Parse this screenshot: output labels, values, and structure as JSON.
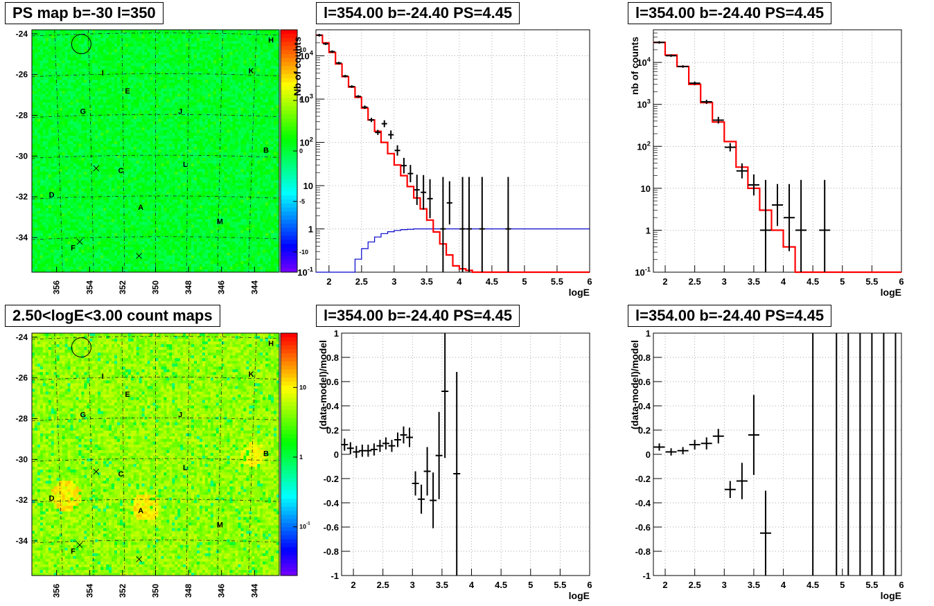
{
  "titles": {
    "map_top": "PS map b=-30 l=350",
    "map_bottom": "2.50<logE<3.00 count maps",
    "p1": "l=354.00 b=-24.40 PS=4.45",
    "p2": "l=354.00 b=-24.40 PS=4.45",
    "p3": "l=354.00 b=-24.40 PS=4.45",
    "p4": "l=354.00 b=-24.40 PS=4.45"
  },
  "colors": {
    "model_line": "#ff0000",
    "data_points": "#000000",
    "blue_curve": "#0000cc",
    "grid": "#888888"
  },
  "chart_data": [
    {
      "id": "ps_map",
      "type": "heatmap",
      "title": "PS map b=-30 l=350",
      "xticks": [
        "356",
        "354",
        "352",
        "350",
        "348",
        "346",
        "344"
      ],
      "yticks": [
        "-24",
        "-26",
        "-28",
        "-30",
        "-32",
        "-34"
      ],
      "xlim": [
        357.5,
        342.5
      ],
      "ylim": [
        -35.7,
        -23.8
      ],
      "zticks": [
        "10",
        "5",
        "0",
        "-5",
        "-10"
      ],
      "zlim": [
        -12,
        12
      ],
      "labels": [
        {
          "t": "H",
          "l": 343.0,
          "b": -24.3
        },
        {
          "t": "I",
          "l": 353.2,
          "b": -25.9
        },
        {
          "t": "K",
          "l": 344.2,
          "b": -25.8
        },
        {
          "t": "E",
          "l": 351.7,
          "b": -26.8
        },
        {
          "t": "G",
          "l": 354.4,
          "b": -27.8
        },
        {
          "t": "J",
          "l": 348.5,
          "b": -27.8
        },
        {
          "t": "B",
          "l": 343.3,
          "b": -29.7
        },
        {
          "t": "C",
          "l": 352.1,
          "b": -30.7
        },
        {
          "t": "L",
          "l": 348.2,
          "b": -30.4
        },
        {
          "t": "D",
          "l": 356.3,
          "b": -31.9
        },
        {
          "t": "A",
          "l": 350.9,
          "b": -32.5
        },
        {
          "t": "M",
          "l": 346.1,
          "b": -33.2
        },
        {
          "t": "F",
          "l": 355.0,
          "b": -34.5
        }
      ],
      "crosses": [
        {
          "l": 353.6,
          "b": -30.6
        },
        {
          "l": 354.6,
          "b": -34.2
        },
        {
          "l": 351.0,
          "b": -34.9
        }
      ],
      "circle": {
        "l": 354.5,
        "b": -24.5
      }
    },
    {
      "id": "count_map",
      "type": "heatmap",
      "title": "2.50<logE<3.00 count maps",
      "xticks": [
        "356",
        "354",
        "352",
        "350",
        "348",
        "346",
        "344"
      ],
      "yticks": [
        "-24",
        "-26",
        "-28",
        "-30",
        "-32",
        "-34"
      ],
      "xlim": [
        357.5,
        342.5
      ],
      "ylim": [
        -35.7,
        -23.8
      ],
      "zticks": [
        "10",
        "1",
        "10-1"
      ],
      "zlog": true,
      "zlim": [
        0.02,
        60
      ]
    },
    {
      "id": "spectrum_left",
      "type": "line",
      "title": "l=354.00 b=-24.40 PS=4.45",
      "xlabel": "logE",
      "ylabel": "Nb of counts",
      "xlim": [
        1.8,
        6.0
      ],
      "ylim": [
        0.1,
        40000
      ],
      "ylog": true,
      "xticks": [
        "2",
        "2.5",
        "3",
        "3.5",
        "4",
        "4.5",
        "5",
        "5.5",
        "6"
      ],
      "yticks": [
        "10-1",
        "1",
        "10",
        "102",
        "103",
        "104"
      ],
      "model_bins_width": 0.1,
      "model_x0": 1.8,
      "model_values": [
        30000,
        20000,
        12000,
        6500,
        3300,
        1900,
        1100,
        620,
        330,
        180,
        100,
        55,
        30,
        17,
        9.5,
        5.2,
        2.9,
        1.6,
        0.85,
        0.45,
        0.25,
        0.14,
        0.12,
        0.11,
        0.1,
        0.1,
        0.1,
        0.1,
        0.1,
        0.1,
        0.1,
        0.1,
        0.1,
        0.1,
        0.1,
        0.1,
        0.1,
        0.1,
        0.1,
        0.1,
        0.1,
        0.1
      ],
      "points": [
        {
          "x": 1.85,
          "y": 30000,
          "e": 0.03
        },
        {
          "x": 1.95,
          "y": 19000,
          "e": 0.03
        },
        {
          "x": 2.05,
          "y": 12500,
          "e": 0.03
        },
        {
          "x": 2.15,
          "y": 6800,
          "e": 0.03
        },
        {
          "x": 2.25,
          "y": 3400,
          "e": 0.03
        },
        {
          "x": 2.35,
          "y": 1950,
          "e": 0.03
        },
        {
          "x": 2.45,
          "y": 1150,
          "e": 0.03
        },
        {
          "x": 2.55,
          "y": 650,
          "e": 0.04
        },
        {
          "x": 2.65,
          "y": 330,
          "e": 0.05
        },
        {
          "x": 2.75,
          "y": 170,
          "e": 0.06
        },
        {
          "x": 2.85,
          "y": 270,
          "e": 0.08
        },
        {
          "x": 2.95,
          "y": 150,
          "e": 0.1
        },
        {
          "x": 3.05,
          "y": 65,
          "e": 0.12
        },
        {
          "x": 3.15,
          "y": 29,
          "e": 0.18
        },
        {
          "x": 3.25,
          "y": 19,
          "e": 0.2
        },
        {
          "x": 3.35,
          "y": 8,
          "e": 0.35
        },
        {
          "x": 3.45,
          "y": 7,
          "e": 0.4
        },
        {
          "x": 3.55,
          "y": 5,
          "e": 0.45
        },
        {
          "x": 3.75,
          "y": 1,
          "e": 1.2
        },
        {
          "x": 3.85,
          "y": 4,
          "e": 0.5
        },
        {
          "x": 4.05,
          "y": 1,
          "e": 1.2
        },
        {
          "x": 4.15,
          "y": 1,
          "e": 1.2
        },
        {
          "x": 4.35,
          "y": 1,
          "e": 1.2
        },
        {
          "x": 4.75,
          "y": 1,
          "e": 1.2
        }
      ],
      "blue_x": [
        1.8,
        2.3,
        2.4,
        2.5,
        2.6,
        2.7,
        2.8,
        2.9,
        3.0,
        3.1,
        3.2,
        3.3,
        6.0
      ],
      "blue_y": [
        0.1,
        0.1,
        0.2,
        0.35,
        0.5,
        0.65,
        0.78,
        0.86,
        0.92,
        0.96,
        0.98,
        1.0,
        1.0
      ]
    },
    {
      "id": "spectrum_right",
      "type": "line",
      "title": "l=354.00 b=-24.40 PS=4.45",
      "xlabel": "logE",
      "ylabel": "nb of counts",
      "xlim": [
        1.8,
        6.0
      ],
      "ylim": [
        0.1,
        60000
      ],
      "ylog": true,
      "xticks": [
        "2",
        "2.5",
        "3",
        "3.5",
        "4",
        "4.5",
        "5",
        "5.5",
        "6"
      ],
      "yticks": [
        "10-1",
        "1",
        "10",
        "102",
        "103",
        "104"
      ],
      "model_bins_width": 0.2,
      "model_x0": 1.8,
      "model_values": [
        30000,
        15000,
        8000,
        3000,
        1100,
        380,
        130,
        32,
        10,
        3,
        1,
        0.4,
        0.1,
        0.1,
        0.1,
        0.1,
        0.1,
        0.1,
        0.1,
        0.1,
        0.1
      ],
      "points": [
        {
          "x": 1.9,
          "y": 30000,
          "e": 0.03
        },
        {
          "x": 2.1,
          "y": 14500,
          "e": 0.03
        },
        {
          "x": 2.3,
          "y": 8000,
          "e": 0.03
        },
        {
          "x": 2.5,
          "y": 3200,
          "e": 0.04
        },
        {
          "x": 2.7,
          "y": 1150,
          "e": 0.05
        },
        {
          "x": 2.9,
          "y": 420,
          "e": 0.08
        },
        {
          "x": 3.1,
          "y": 95,
          "e": 0.1
        },
        {
          "x": 3.3,
          "y": 26,
          "e": 0.18
        },
        {
          "x": 3.5,
          "y": 12,
          "e": 0.25
        },
        {
          "x": 3.7,
          "y": 1,
          "e": 1.2
        },
        {
          "x": 3.9,
          "y": 4,
          "e": 0.5
        },
        {
          "x": 4.1,
          "y": 2,
          "e": 0.8
        },
        {
          "x": 4.3,
          "y": 1,
          "e": 1.2
        },
        {
          "x": 4.7,
          "y": 1,
          "e": 1.2
        }
      ]
    },
    {
      "id": "residual_left",
      "type": "scatter",
      "title": "l=354.00 b=-24.40 PS=4.45",
      "xlabel": "logE",
      "ylabel": "(data-model)/model",
      "xlim": [
        1.8,
        6.0
      ],
      "ylim": [
        -1,
        1
      ],
      "xticks": [
        "2",
        "2.5",
        "3",
        "3.5",
        "4",
        "4.5",
        "5",
        "5.5",
        "6"
      ],
      "yticks": [
        "-1",
        "-0.8",
        "-0.6",
        "-0.4",
        "-0.2",
        "0",
        "0.2",
        "0.4",
        "0.6",
        "0.8",
        "1"
      ],
      "points": [
        {
          "x": 1.85,
          "y": 0.08,
          "e": 0.05
        },
        {
          "x": 1.95,
          "y": 0.05,
          "e": 0.05
        },
        {
          "x": 2.05,
          "y": 0.02,
          "e": 0.05
        },
        {
          "x": 2.15,
          "y": 0.03,
          "e": 0.05
        },
        {
          "x": 2.25,
          "y": 0.03,
          "e": 0.05
        },
        {
          "x": 2.35,
          "y": 0.04,
          "e": 0.05
        },
        {
          "x": 2.45,
          "y": 0.07,
          "e": 0.05
        },
        {
          "x": 2.55,
          "y": 0.09,
          "e": 0.05
        },
        {
          "x": 2.65,
          "y": 0.07,
          "e": 0.05
        },
        {
          "x": 2.75,
          "y": 0.12,
          "e": 0.06
        },
        {
          "x": 2.85,
          "y": 0.16,
          "e": 0.07
        },
        {
          "x": 2.95,
          "y": 0.14,
          "e": 0.08
        },
        {
          "x": 3.05,
          "y": -0.24,
          "e": 0.1
        },
        {
          "x": 3.15,
          "y": -0.37,
          "e": 0.12
        },
        {
          "x": 3.25,
          "y": -0.14,
          "e": 0.2
        },
        {
          "x": 3.35,
          "y": -0.38,
          "e": 0.23
        },
        {
          "x": 3.45,
          "y": -0.01,
          "e": 0.36
        },
        {
          "x": 3.55,
          "y": 0.52,
          "e": 0.55
        },
        {
          "x": 3.75,
          "y": -0.16,
          "e": 0.84
        }
      ]
    },
    {
      "id": "residual_right",
      "type": "scatter",
      "title": "l=354.00 b=-24.40 PS=4.45",
      "xlabel": "logE",
      "ylabel": "(data-model)/model",
      "xlim": [
        1.8,
        6.0
      ],
      "ylim": [
        -1,
        1
      ],
      "xticks": [
        "2",
        "2.5",
        "3",
        "3.5",
        "4",
        "4.5",
        "5",
        "5.5",
        "6"
      ],
      "yticks": [
        "-1",
        "-0.8",
        "-0.6",
        "-0.4",
        "-0.2",
        "0",
        "0.2",
        "0.4",
        "0.6",
        "0.8",
        "1"
      ],
      "points": [
        {
          "x": 1.9,
          "y": 0.06,
          "e": 0.03
        },
        {
          "x": 2.1,
          "y": 0.02,
          "e": 0.03
        },
        {
          "x": 2.3,
          "y": 0.03,
          "e": 0.03
        },
        {
          "x": 2.5,
          "y": 0.08,
          "e": 0.04
        },
        {
          "x": 2.7,
          "y": 0.09,
          "e": 0.05
        },
        {
          "x": 2.9,
          "y": 0.15,
          "e": 0.06
        },
        {
          "x": 3.1,
          "y": -0.29,
          "e": 0.07
        },
        {
          "x": 3.3,
          "y": -0.22,
          "e": 0.15
        },
        {
          "x": 3.5,
          "y": 0.16,
          "e": 0.33
        },
        {
          "x": 3.7,
          "y": -0.65,
          "e": 0.35
        }
      ],
      "full_bars_x": [
        4.5,
        4.9,
        5.1,
        5.3,
        5.5,
        5.7,
        5.9
      ]
    }
  ]
}
